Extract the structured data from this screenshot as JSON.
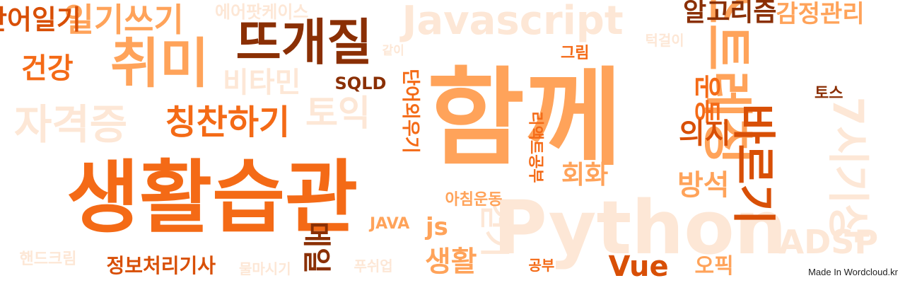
{
  "palette": {
    "pale": "#fde7d6",
    "light": "#ffa35a",
    "mid": "#f46a16",
    "dark": "#d84f06",
    "deep": "#8a2f04"
  },
  "words": [
    {
      "text": "Javascript",
      "color": "pale"
    },
    {
      "text": "Python",
      "color": "pale"
    },
    {
      "text": "ADSP",
      "color": "pale"
    },
    {
      "text": "자격증",
      "color": "pale"
    },
    {
      "text": "토익",
      "color": "pale"
    },
    {
      "text": "7시기상",
      "color": "pale"
    },
    {
      "text": "비타민",
      "color": "pale"
    },
    {
      "text": "에어팟케이스",
      "color": "pale"
    },
    {
      "text": "핸드크림",
      "color": "pale"
    },
    {
      "text": "푸쉬업",
      "color": "pale"
    },
    {
      "text": "물마시기",
      "color": "pale"
    },
    {
      "text": "같이",
      "color": "pale"
    },
    {
      "text": "턱걸이",
      "color": "pale"
    },
    {
      "text": "걷기",
      "color": "pale"
    },
    {
      "text": "취미",
      "color": "light"
    },
    {
      "text": "함께",
      "color": "light"
    },
    {
      "text": "스트레칭",
      "color": "light"
    },
    {
      "text": "일기쓰기",
      "color": "light"
    },
    {
      "text": "JAVA",
      "color": "light"
    },
    {
      "text": "js",
      "color": "light"
    },
    {
      "text": "생활",
      "color": "light"
    },
    {
      "text": "아침운동",
      "color": "light"
    },
    {
      "text": "오픽",
      "color": "light"
    },
    {
      "text": "회화",
      "color": "light"
    },
    {
      "text": "방석",
      "color": "light"
    },
    {
      "text": "감정관리",
      "color": "light"
    },
    {
      "text": "생활습관",
      "color": "mid"
    },
    {
      "text": "건강",
      "color": "mid"
    },
    {
      "text": "칭찬하기",
      "color": "mid"
    },
    {
      "text": "운동",
      "color": "mid"
    },
    {
      "text": "단어외우기",
      "color": "mid"
    },
    {
      "text": "리액트공부",
      "color": "mid"
    },
    {
      "text": "그림",
      "color": "mid"
    },
    {
      "text": "공부",
      "color": "mid"
    },
    {
      "text": "단어일기",
      "color": "dark"
    },
    {
      "text": "바르기",
      "color": "dark"
    },
    {
      "text": "정보처리기사",
      "color": "dark"
    },
    {
      "text": "의지",
      "color": "dark"
    },
    {
      "text": "Vue",
      "color": "dark"
    },
    {
      "text": "뜨개질",
      "color": "deep"
    },
    {
      "text": "알고리즘",
      "color": "deep"
    },
    {
      "text": "SQLD",
      "color": "deep"
    },
    {
      "text": "토스",
      "color": "deep"
    },
    {
      "text": "메일",
      "color": "deep"
    }
  ],
  "credit": "Made In Wordcloud.kr"
}
